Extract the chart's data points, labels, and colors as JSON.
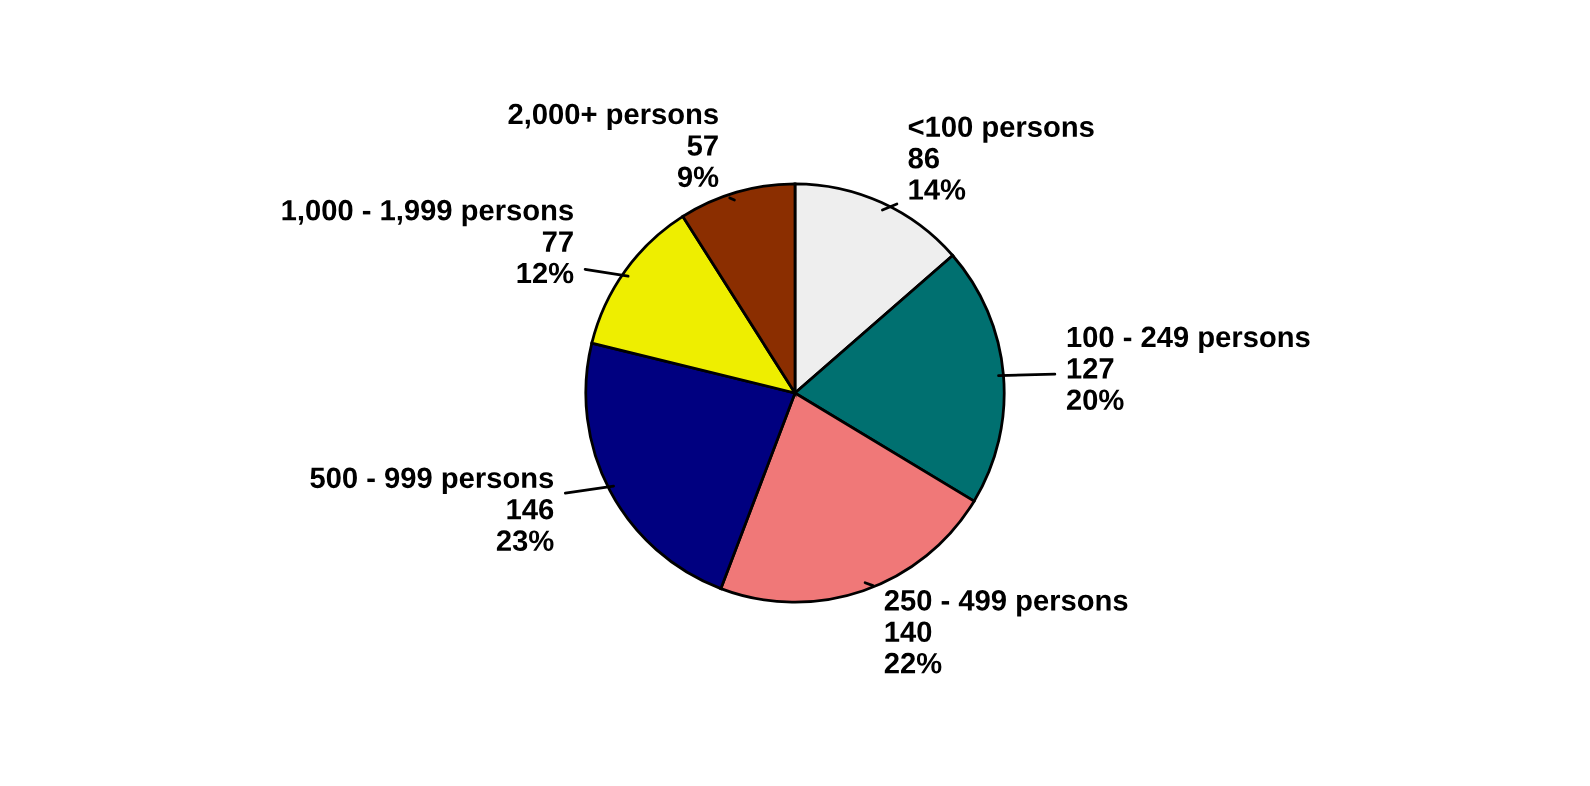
{
  "chart_data": {
    "type": "pie",
    "categories": [
      "<100 persons",
      "100 - 249 persons",
      "250 - 499 persons",
      "500 - 999 persons",
      "1,000 - 1,999 persons",
      "2,000+ persons"
    ],
    "values": [
      86,
      127,
      140,
      146,
      77,
      57
    ],
    "value_labels": [
      "86\n14%",
      "127\n20%",
      "140\n22%",
      "146\n23%",
      "77\n12%",
      "57\n9%"
    ],
    "colors": [
      "#eeeeee",
      "#007070",
      "#f07878",
      "#000080",
      "#eeee00",
      "#8b2e00"
    ],
    "legend": false
  }
}
